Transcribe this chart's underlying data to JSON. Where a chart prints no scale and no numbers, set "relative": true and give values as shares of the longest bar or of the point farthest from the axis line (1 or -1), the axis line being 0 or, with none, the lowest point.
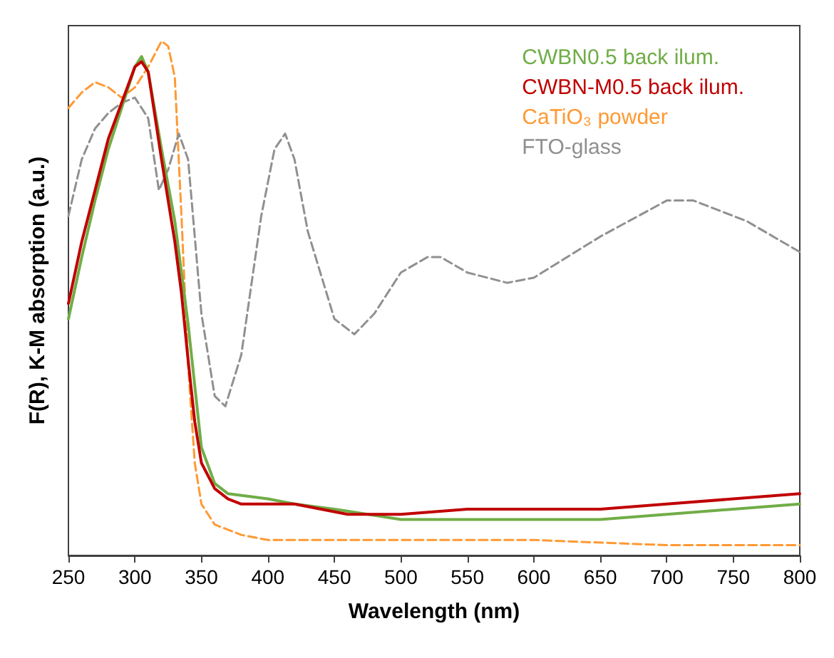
{
  "chart_data": {
    "type": "line",
    "relative": true,
    "xlabel": "Wavelength (nm)",
    "ylabel": "F(R), K-M absorption (a.u.)",
    "xlim": [
      250,
      800
    ],
    "xticks": [
      250,
      300,
      350,
      400,
      450,
      500,
      550,
      600,
      650,
      700,
      750,
      800
    ],
    "legend": "top right",
    "grid": false,
    "marker": "none",
    "series": [
      {
        "name": "CWBN0.5 back ilum.",
        "color": "#70ad47",
        "line_style": "solid",
        "x": [
          250,
          260,
          270,
          280,
          290,
          300,
          305,
          310,
          320,
          330,
          340,
          350,
          360,
          370,
          400,
          420,
          450,
          500,
          550,
          600,
          650,
          700,
          750,
          800
        ],
        "values": [
          0.46,
          0.58,
          0.69,
          0.79,
          0.87,
          0.95,
          0.97,
          0.94,
          0.79,
          0.65,
          0.45,
          0.21,
          0.14,
          0.12,
          0.11,
          0.1,
          0.09,
          0.07,
          0.07,
          0.07,
          0.07,
          0.08,
          0.09,
          0.1
        ]
      },
      {
        "name": "CWBN-M0.5 back ilum.",
        "color": "#c00000",
        "line_style": "solid",
        "x": [
          250,
          260,
          270,
          280,
          290,
          300,
          305,
          310,
          320,
          330,
          335,
          340,
          345,
          350,
          360,
          370,
          380,
          400,
          420,
          440,
          460,
          500,
          550,
          600,
          650,
          700,
          750,
          800
        ],
        "values": [
          0.49,
          0.61,
          0.71,
          0.81,
          0.88,
          0.95,
          0.96,
          0.94,
          0.77,
          0.61,
          0.51,
          0.38,
          0.26,
          0.18,
          0.13,
          0.11,
          0.1,
          0.1,
          0.1,
          0.09,
          0.08,
          0.08,
          0.09,
          0.09,
          0.09,
          0.1,
          0.11,
          0.12
        ]
      },
      {
        "name": "CaTiO₃ powder",
        "color": "#ff9933",
        "line_style": "dashed",
        "x": [
          250,
          260,
          270,
          280,
          290,
          300,
          310,
          320,
          325,
          330,
          335,
          340,
          345,
          350,
          360,
          380,
          400,
          450,
          500,
          600,
          700,
          800
        ],
        "values": [
          0.87,
          0.9,
          0.92,
          0.91,
          0.89,
          0.91,
          0.95,
          1.0,
          0.99,
          0.93,
          0.66,
          0.37,
          0.18,
          0.1,
          0.06,
          0.04,
          0.03,
          0.03,
          0.03,
          0.03,
          0.02,
          0.02
        ]
      },
      {
        "name": "FTO-glass",
        "color": "#909090",
        "line_style": "dashed",
        "x": [
          250,
          260,
          270,
          280,
          290,
          300,
          310,
          318,
          325,
          333,
          340,
          350,
          360,
          368,
          380,
          395,
          405,
          413,
          420,
          430,
          450,
          465,
          480,
          500,
          520,
          530,
          550,
          580,
          600,
          650,
          700,
          720,
          760,
          800
        ],
        "values": [
          0.66,
          0.77,
          0.83,
          0.86,
          0.88,
          0.89,
          0.85,
          0.71,
          0.75,
          0.82,
          0.77,
          0.47,
          0.31,
          0.29,
          0.39,
          0.66,
          0.79,
          0.82,
          0.77,
          0.63,
          0.46,
          0.43,
          0.47,
          0.55,
          0.58,
          0.58,
          0.55,
          0.53,
          0.54,
          0.62,
          0.69,
          0.69,
          0.65,
          0.59
        ]
      }
    ]
  }
}
